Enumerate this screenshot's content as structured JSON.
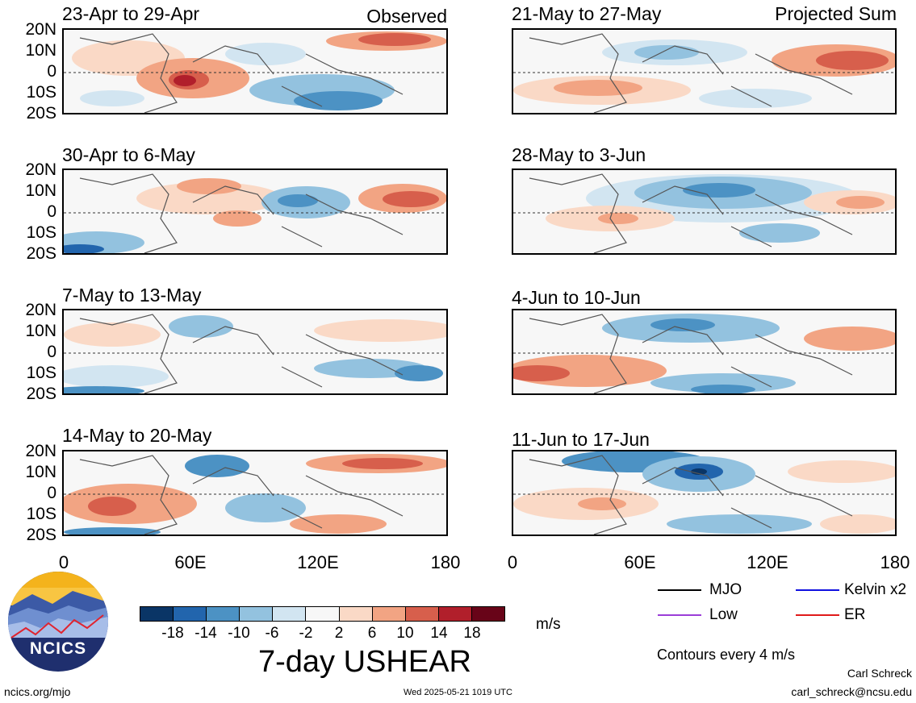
{
  "headers": {
    "left": "Observed",
    "right": "Projected Sum"
  },
  "panels": {
    "observed": [
      "23-Apr to 29-Apr",
      "30-Apr to 6-May",
      "7-May to 13-May",
      "14-May to 20-May"
    ],
    "projected": [
      "21-May to 27-May",
      "28-May to 3-Jun",
      "4-Jun to 10-Jun",
      "11-Jun to 17-Jun"
    ]
  },
  "lat_labels": [
    "20N",
    "10N",
    "0",
    "10S",
    "20S"
  ],
  "lon_labels": [
    "0",
    "60E",
    "120E",
    "180"
  ],
  "colorbar": {
    "ticks": [
      "-18",
      "-14",
      "-10",
      "-6",
      "-2",
      "2",
      "6",
      "10",
      "14",
      "18"
    ],
    "colors": [
      "#0a3566",
      "#2265ad",
      "#4c92c4",
      "#93c2df",
      "#d2e5f1",
      "#f7f7f7",
      "#fad9c6",
      "#f2a483",
      "#d75f4c",
      "#b11f2b",
      "#680418"
    ],
    "units": "m/s",
    "title": "7-day USHEAR"
  },
  "legend": {
    "mjo": "MJO",
    "kelvin": "Kelvin x2",
    "low": "Low",
    "er": "ER",
    "mjo_color": "#000000",
    "kelvin_color": "#1010e0",
    "low_color": "#9b3dd8",
    "er_color": "#e01a1a",
    "contours": "Contours every 4 m/s"
  },
  "logo": {
    "text": "NCICS"
  },
  "footer": {
    "url": "ncics.org/mjo",
    "timestamp": "Wed 2025-05-21 1019 UTC",
    "author": "Carl Schreck",
    "email": "carl_schreck@ncsu.edu"
  }
}
